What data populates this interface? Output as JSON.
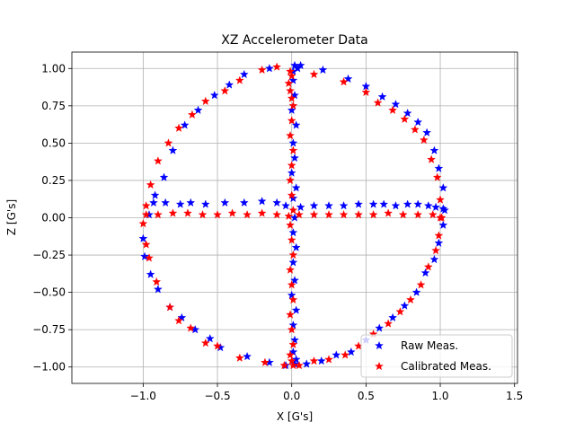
{
  "chart_data": {
    "type": "scatter",
    "title": "XZ Accelerometer Data",
    "xlabel": "X [G's]",
    "ylabel": "Z [G's]",
    "xlim": [
      -1.48,
      1.52
    ],
    "ylim": [
      -1.11,
      1.11
    ],
    "xticks": [
      -1.0,
      -0.5,
      0.0,
      0.5,
      1.0,
      1.5
    ],
    "xtick_labels": [
      "−1.0",
      "−0.5",
      "0.0",
      "0.5",
      "1.0",
      "1.5"
    ],
    "yticks": [
      -1.0,
      -0.75,
      -0.5,
      -0.25,
      0.0,
      0.25,
      0.5,
      0.75,
      1.0
    ],
    "ytick_labels": [
      "−1.00",
      "−0.75",
      "−0.50",
      "−0.25",
      "0.00",
      "0.25",
      "0.50",
      "0.75",
      "1.00"
    ],
    "grid": true,
    "legend_position": "lower-right",
    "marker": "star",
    "series": [
      {
        "name": "Raw Meas.",
        "color": "#0000ff",
        "x": [
          0.06,
          0.21,
          0.38,
          0.5,
          0.61,
          0.7,
          0.78,
          0.85,
          0.91,
          0.96,
          0.99,
          1.02,
          1.03,
          1.02,
          0.99,
          0.96,
          0.9,
          0.84,
          0.76,
          0.68,
          0.59,
          0.5,
          0.4,
          0.3,
          0.2,
          0.1,
          -0.04,
          -0.15,
          -0.3,
          -0.48,
          -0.55,
          -0.65,
          -0.74,
          -0.82,
          -0.9,
          -0.95,
          -0.99,
          -1.0,
          -0.96,
          -0.92,
          -0.86,
          -0.8,
          -0.72,
          -0.63,
          -0.52,
          -0.42,
          -0.32,
          -0.15,
          -0.93,
          -0.85,
          -0.75,
          -0.68,
          -0.58,
          -0.45,
          -0.32,
          -0.2,
          -0.1,
          -0.04,
          0.06,
          0.15,
          0.25,
          0.35,
          0.45,
          0.55,
          0.62,
          0.7,
          0.78,
          0.85,
          0.92,
          0.97,
          1.02,
          0.01,
          0.02,
          0.0,
          0.03,
          0.01,
          0.02,
          0.0,
          0.03,
          0.01,
          0.02,
          0.01,
          0.03,
          0.01,
          0.02,
          0.0,
          0.03,
          0.01,
          0.02,
          0.01,
          0.03,
          0.02,
          0.01,
          0.04,
          0.02
        ],
        "z": [
          1.02,
          0.99,
          0.93,
          0.88,
          0.81,
          0.76,
          0.7,
          0.64,
          0.57,
          0.45,
          0.33,
          0.2,
          0.05,
          -0.05,
          -0.17,
          -0.28,
          -0.37,
          -0.5,
          -0.59,
          -0.67,
          -0.74,
          -0.82,
          -0.9,
          -0.92,
          -0.96,
          -0.98,
          -0.99,
          -0.97,
          -0.93,
          -0.87,
          -0.81,
          -0.75,
          -0.67,
          -0.6,
          -0.48,
          -0.38,
          -0.26,
          -0.14,
          0.02,
          0.15,
          0.27,
          0.45,
          0.62,
          0.72,
          0.82,
          0.89,
          0.96,
          1.0,
          0.1,
          0.1,
          0.09,
          0.1,
          0.09,
          0.1,
          0.1,
          0.11,
          0.1,
          0.08,
          0.07,
          0.08,
          0.08,
          0.08,
          0.09,
          0.09,
          0.09,
          0.08,
          0.09,
          0.09,
          0.08,
          0.07,
          0.06,
          0.92,
          0.82,
          0.72,
          0.62,
          0.5,
          0.4,
          0.3,
          0.2,
          0.13,
          0.0,
          -0.1,
          -0.2,
          -0.3,
          -0.42,
          -0.52,
          -0.62,
          -0.72,
          -0.82,
          -0.9,
          -0.95,
          -0.98,
          0.98,
          1.0,
          1.02
        ]
      },
      {
        "name": "Calibrated Meas.",
        "color": "#ff0000",
        "x": [
          -0.01,
          0.15,
          0.35,
          0.5,
          0.58,
          0.68,
          0.76,
          0.83,
          0.89,
          0.94,
          0.98,
          1.0,
          1.01,
          0.99,
          0.97,
          0.92,
          0.87,
          0.8,
          0.73,
          0.65,
          0.55,
          0.45,
          0.36,
          0.25,
          0.15,
          0.05,
          -0.05,
          -0.18,
          -0.35,
          -0.5,
          -0.58,
          -0.68,
          -0.76,
          -0.82,
          -0.91,
          -0.96,
          -0.98,
          -1.0,
          -0.98,
          -0.95,
          -0.9,
          -0.83,
          -0.76,
          -0.67,
          -0.58,
          -0.45,
          -0.35,
          -0.2,
          -0.1,
          -0.98,
          -0.9,
          -0.8,
          -0.7,
          -0.6,
          -0.5,
          -0.4,
          -0.3,
          -0.2,
          -0.1,
          -0.02,
          0.05,
          0.15,
          0.25,
          0.35,
          0.45,
          0.55,
          0.65,
          0.75,
          0.85,
          0.95,
          1.0,
          0.0,
          -0.01,
          0.01,
          0.0,
          -0.01,
          0.01,
          0.0,
          -0.01,
          0.0,
          0.01,
          -0.01,
          0.0,
          0.01,
          -0.01,
          0.0,
          0.01,
          -0.01,
          0.0,
          0.01,
          -0.01,
          0.0,
          0.01,
          -0.02,
          0.0
        ],
        "z": [
          0.98,
          0.96,
          0.91,
          0.84,
          0.77,
          0.72,
          0.66,
          0.59,
          0.52,
          0.39,
          0.27,
          0.12,
          0.0,
          -0.12,
          -0.22,
          -0.33,
          -0.45,
          -0.55,
          -0.63,
          -0.71,
          -0.78,
          -0.86,
          -0.92,
          -0.95,
          -0.96,
          -0.99,
          -0.99,
          -0.97,
          -0.94,
          -0.86,
          -0.84,
          -0.74,
          -0.69,
          -0.6,
          -0.43,
          -0.27,
          -0.18,
          -0.04,
          0.08,
          0.22,
          0.38,
          0.5,
          0.6,
          0.69,
          0.78,
          0.85,
          0.92,
          0.99,
          1.01,
          0.02,
          0.02,
          0.03,
          0.03,
          0.02,
          0.02,
          0.03,
          0.02,
          0.03,
          0.02,
          0.01,
          0.02,
          0.02,
          0.02,
          0.02,
          0.02,
          0.02,
          0.03,
          0.02,
          0.02,
          0.02,
          0.0,
          0.95,
          0.85,
          0.75,
          0.65,
          0.55,
          0.45,
          0.35,
          0.25,
          0.15,
          0.05,
          -0.05,
          -0.15,
          -0.25,
          -0.35,
          -0.45,
          -0.55,
          -0.65,
          -0.75,
          -0.85,
          -0.92,
          -0.96,
          -0.99,
          0.9,
          0.8
        ]
      }
    ]
  }
}
